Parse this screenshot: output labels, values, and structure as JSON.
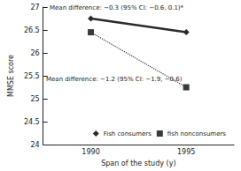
{
  "chart_data": {
    "type": "line",
    "categories": [
      "1990",
      "1995"
    ],
    "series": [
      {
        "name": "Fish consumers",
        "color": "#2b2b2b",
        "marker": "diamond",
        "line_style": "solid",
        "values": [
          26.75,
          26.45
        ]
      },
      {
        "name": "fish nonconsumers",
        "color": "#3a3a3a",
        "marker": "square",
        "line_style": "dotted",
        "values": [
          26.45,
          25.25
        ]
      }
    ],
    "x_label": "Span of the study (y)",
    "y_label": "MMSE score",
    "ylim": [
      24,
      27
    ],
    "yticks": [
      24,
      24.5,
      25,
      25.5,
      26,
      26.5,
      27
    ],
    "annotations": [
      "Mean difference: −0.3 (95% CI: −0.6, 0.1)*",
      "Mean difference: −1.2 (95% CI: −1.9, −0.6)"
    ],
    "grid": false,
    "legend": "lower right"
  }
}
